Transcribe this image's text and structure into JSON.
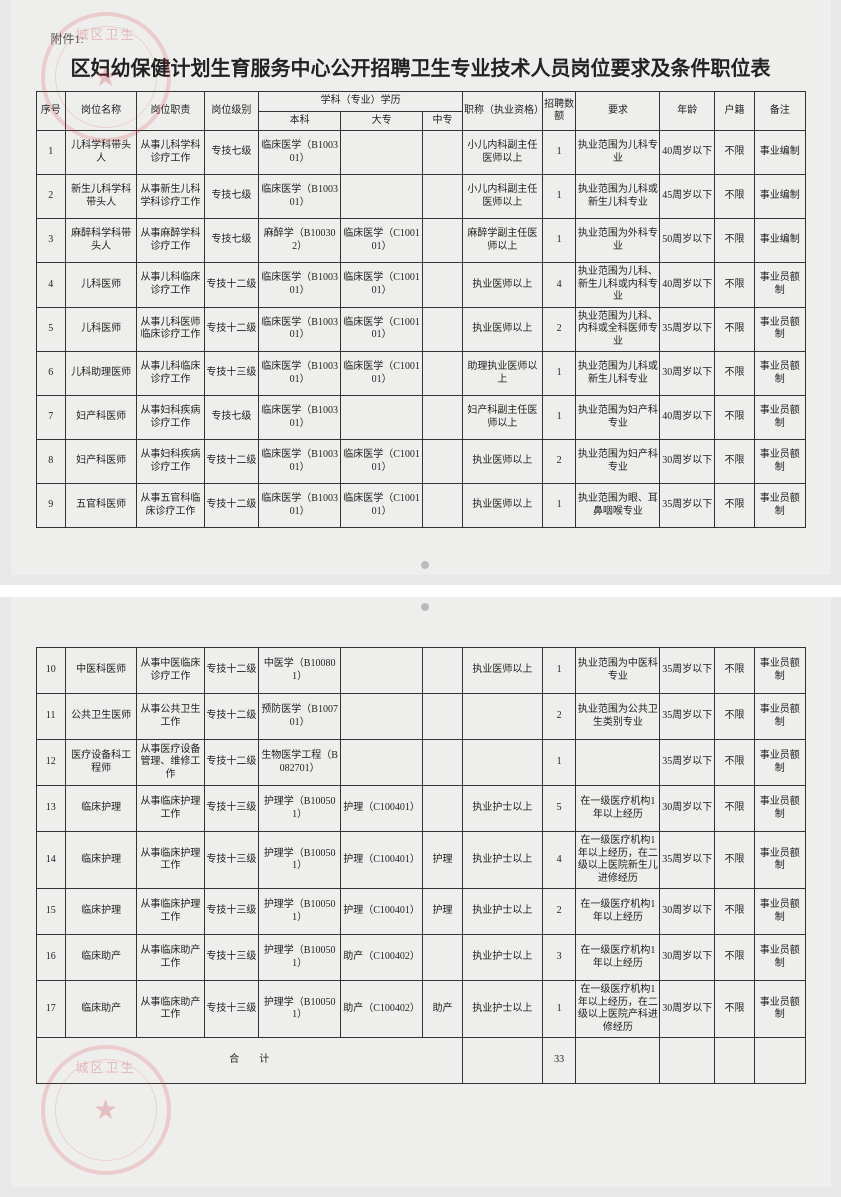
{
  "attach_label": "附件1:",
  "title": "区妇幼保健计划生育服务中心公开招聘卫生专业技术人员岗位要求及条件职位表",
  "stamp_text": "城区卫生",
  "columns": {
    "seq": "序号",
    "post_name": "岗位名称",
    "duty": "岗位职责",
    "level": "岗位级别",
    "edu_group": "学科（专业）学历",
    "bk": "本科",
    "dz": "大专",
    "zz": "中专",
    "title": "职称（执业资格）",
    "count": "招聘数额",
    "req": "要求",
    "age": "年龄",
    "huji": "户籍",
    "note": "备注"
  },
  "sum_label": "合　　计",
  "total_count": "33",
  "rows1": [
    {
      "seq": "1",
      "name": "儿科学科带头人",
      "duty": "从事儿科学科诊疗工作",
      "level": "专技七级",
      "bk": "临床医学（B100301）",
      "dz": "",
      "zz": "",
      "title": "小儿内科副主任医师以上",
      "count": "1",
      "req": "执业范围为儿科专业",
      "age": "40周岁以下",
      "huji": "不限",
      "note": "事业编制"
    },
    {
      "seq": "2",
      "name": "新生儿科学科带头人",
      "duty": "从事新生儿科学科诊疗工作",
      "level": "专技七级",
      "bk": "临床医学（B100301）",
      "dz": "",
      "zz": "",
      "title": "小儿内科副主任医师以上",
      "count": "1",
      "req": "执业范围为儿科或新生儿科专业",
      "age": "45周岁以下",
      "huji": "不限",
      "note": "事业编制"
    },
    {
      "seq": "3",
      "name": "麻醉科学科带头人",
      "duty": "从事麻醉学科诊疗工作",
      "level": "专技七级",
      "bk": "麻醉学（B100302）",
      "dz": "临床医学（C100101）",
      "zz": "",
      "title": "麻醉学副主任医师以上",
      "count": "1",
      "req": "执业范围为外科专业",
      "age": "50周岁以下",
      "huji": "不限",
      "note": "事业编制"
    },
    {
      "seq": "4",
      "name": "儿科医师",
      "duty": "从事儿科临床诊疗工作",
      "level": "专技十二级",
      "bk": "临床医学（B100301）",
      "dz": "临床医学（C100101）",
      "zz": "",
      "title": "执业医师以上",
      "count": "4",
      "req": "执业范围为儿科、新生儿科或内科专业",
      "age": "40周岁以下",
      "huji": "不限",
      "note": "事业员额制"
    },
    {
      "seq": "5",
      "name": "儿科医师",
      "duty": "从事儿科医师临床诊疗工作",
      "level": "专技十二级",
      "bk": "临床医学（B100301）",
      "dz": "临床医学（C100101）",
      "zz": "",
      "title": "执业医师以上",
      "count": "2",
      "req": "执业范围为儿科、内科或全科医师专业",
      "age": "35周岁以下",
      "huji": "不限",
      "note": "事业员额制"
    },
    {
      "seq": "6",
      "name": "儿科助理医师",
      "duty": "从事儿科临床诊疗工作",
      "level": "专技十三级",
      "bk": "临床医学（B100301）",
      "dz": "临床医学（C100101）",
      "zz": "",
      "title": "助理执业医师以上",
      "count": "1",
      "req": "执业范围为儿科或新生儿科专业",
      "age": "30周岁以下",
      "huji": "不限",
      "note": "事业员额制"
    },
    {
      "seq": "7",
      "name": "妇产科医师",
      "duty": "从事妇科疾病诊疗工作",
      "level": "专技七级",
      "bk": "临床医学（B100301）",
      "dz": "",
      "zz": "",
      "title": "妇产科副主任医师以上",
      "count": "1",
      "req": "执业范围为妇产科专业",
      "age": "40周岁以下",
      "huji": "不限",
      "note": "事业员额制"
    },
    {
      "seq": "8",
      "name": "妇产科医师",
      "duty": "从事妇科疾病诊疗工作",
      "level": "专技十二级",
      "bk": "临床医学（B100301）",
      "dz": "临床医学（C100101）",
      "zz": "",
      "title": "执业医师以上",
      "count": "2",
      "req": "执业范围为妇产科专业",
      "age": "30周岁以下",
      "huji": "不限",
      "note": "事业员额制"
    },
    {
      "seq": "9",
      "name": "五官科医师",
      "duty": "从事五官科临床诊疗工作",
      "level": "专技十二级",
      "bk": "临床医学（B100301）",
      "dz": "临床医学（C100101）",
      "zz": "",
      "title": "执业医师以上",
      "count": "1",
      "req": "执业范围为眼、耳鼻咽喉专业",
      "age": "35周岁以下",
      "huji": "不限",
      "note": "事业员额制"
    }
  ],
  "rows2": [
    {
      "seq": "10",
      "name": "中医科医师",
      "duty": "从事中医临床诊疗工作",
      "level": "专技十二级",
      "bk": "中医学（B100801）",
      "dz": "",
      "zz": "",
      "title": "执业医师以上",
      "count": "1",
      "req": "执业范围为中医科专业",
      "age": "35周岁以下",
      "huji": "不限",
      "note": "事业员额制"
    },
    {
      "seq": "11",
      "name": "公共卫生医师",
      "duty": "从事公共卫生工作",
      "level": "专技十二级",
      "bk": "预防医学（B100701）",
      "dz": "",
      "zz": "",
      "title": "",
      "count": "2",
      "req": "执业范围为公共卫生类别专业",
      "age": "35周岁以下",
      "huji": "不限",
      "note": "事业员额制"
    },
    {
      "seq": "12",
      "name": "医疗设备科工程师",
      "duty": "从事医疗设备管理、维修工作",
      "level": "专技十二级",
      "bk": "生物医学工程（B082701）",
      "dz": "",
      "zz": "",
      "title": "",
      "count": "1",
      "req": "",
      "age": "35周岁以下",
      "huji": "不限",
      "note": "事业员额制"
    },
    {
      "seq": "13",
      "name": "临床护理",
      "duty": "从事临床护理工作",
      "level": "专技十三级",
      "bk": "护理学（B100501）",
      "dz": "护理（C100401）",
      "zz": "",
      "title": "执业护士以上",
      "count": "5",
      "req": "在一级医疗机构1年以上经历",
      "age": "30周岁以下",
      "huji": "不限",
      "note": "事业员额制"
    },
    {
      "seq": "14",
      "name": "临床护理",
      "duty": "从事临床护理工作",
      "level": "专技十三级",
      "bk": "护理学（B100501）",
      "dz": "护理（C100401）",
      "zz": "护理",
      "title": "执业护士以上",
      "count": "4",
      "req": "在一级医疗机构1年以上经历，在二级以上医院新生儿进修经历",
      "age": "35周岁以下",
      "huji": "不限",
      "note": "事业员额制"
    },
    {
      "seq": "15",
      "name": "临床护理",
      "duty": "从事临床护理工作",
      "level": "专技十三级",
      "bk": "护理学（B100501）",
      "dz": "护理（C100401）",
      "zz": "护理",
      "title": "执业护士以上",
      "count": "2",
      "req": "在一级医疗机构1年以上经历",
      "age": "30周岁以下",
      "huji": "不限",
      "note": "事业员额制"
    },
    {
      "seq": "16",
      "name": "临床助产",
      "duty": "从事临床助产工作",
      "level": "专技十三级",
      "bk": "护理学（B100501）",
      "dz": "助产（C100402）",
      "zz": "",
      "title": "执业护士以上",
      "count": "3",
      "req": "在一级医疗机构1年以上经历",
      "age": "30周岁以下",
      "huji": "不限",
      "note": "事业员额制"
    },
    {
      "seq": "17",
      "name": "临床助产",
      "duty": "从事临床助产工作",
      "level": "专技十三级",
      "bk": "护理学（B100501）",
      "dz": "助产（C100402）",
      "zz": "助产",
      "title": "执业护士以上",
      "count": "1",
      "req": "在一级医疗机构1年以上经历，在二级以上医院产科进修经历",
      "age": "30周岁以下",
      "huji": "不限",
      "note": "事业员额制"
    }
  ]
}
